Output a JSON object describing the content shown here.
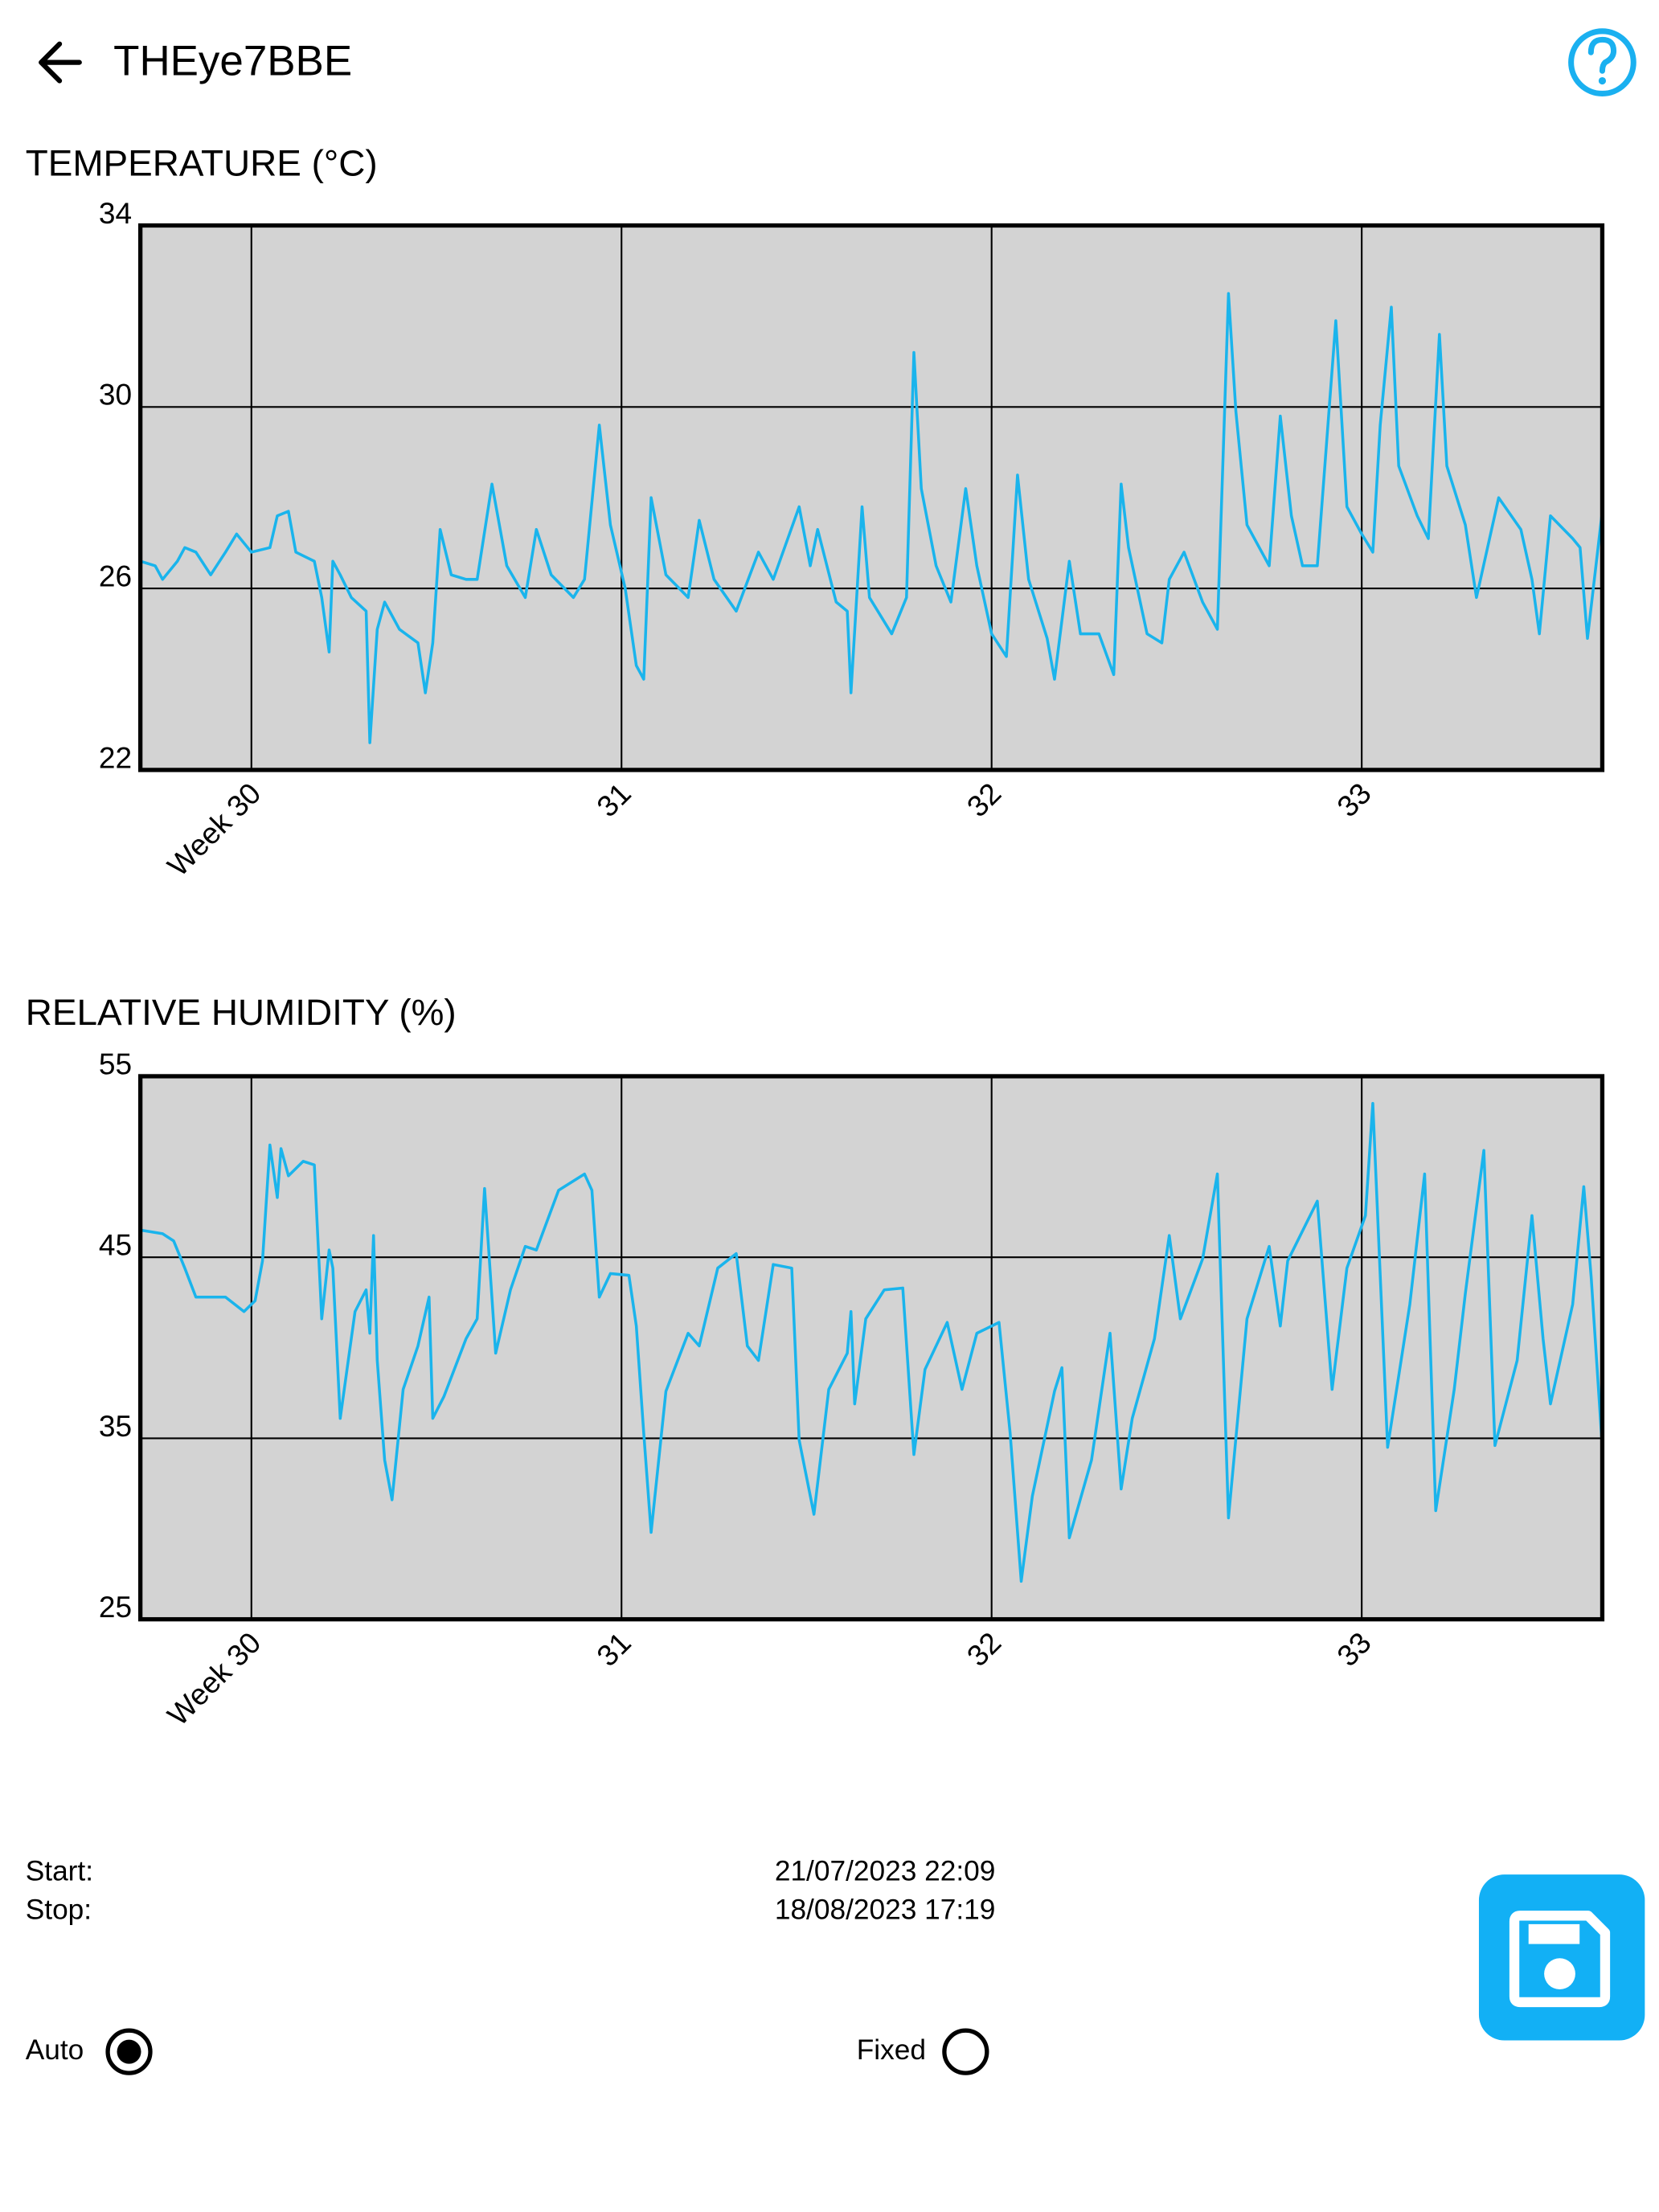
{
  "header": {
    "title": "THEye7BBE"
  },
  "chart_data": [
    {
      "type": "line",
      "title": "TEMPERATURE (°C)",
      "color": "#1ab4ec",
      "grid": true,
      "xlim": [
        29.7,
        33.65
      ],
      "xticks": [
        {
          "value": 30,
          "label": "Week 30"
        },
        31,
        32,
        33
      ],
      "ylim": [
        22,
        34
      ],
      "yticks": [
        22,
        26,
        30,
        34
      ],
      "x": [
        29.7,
        29.74,
        29.76,
        29.8,
        29.82,
        29.85,
        29.89,
        29.93,
        29.96,
        30.0,
        30.05,
        30.07,
        30.1,
        30.12,
        30.17,
        30.19,
        30.21,
        30.22,
        30.24,
        30.27,
        30.31,
        30.32,
        30.34,
        30.36,
        30.4,
        30.45,
        30.47,
        30.49,
        30.51,
        30.54,
        30.58,
        30.61,
        30.65,
        30.69,
        30.74,
        30.77,
        30.81,
        30.87,
        30.9,
        30.94,
        30.97,
        31.01,
        31.04,
        31.06,
        31.08,
        31.12,
        31.18,
        31.21,
        31.25,
        31.31,
        31.37,
        31.41,
        31.48,
        31.51,
        31.53,
        31.58,
        31.61,
        31.62,
        31.65,
        31.67,
        31.73,
        31.77,
        31.79,
        31.81,
        31.85,
        31.89,
        31.93,
        31.96,
        32.0,
        32.04,
        32.07,
        32.1,
        32.15,
        32.17,
        32.21,
        32.24,
        32.29,
        32.33,
        32.35,
        32.37,
        32.42,
        32.46,
        32.48,
        32.52,
        32.57,
        32.61,
        32.64,
        32.66,
        32.69,
        32.75,
        32.78,
        32.81,
        32.84,
        32.88,
        32.93,
        32.96,
        33.0,
        33.03,
        33.05,
        33.08,
        33.1,
        33.15,
        33.18,
        33.21,
        33.23,
        33.28,
        33.31,
        33.34,
        33.37,
        33.43,
        33.46,
        33.48,
        33.51,
        33.57,
        33.59,
        33.61,
        33.65
      ],
      "values": [
        26.6,
        26.5,
        26.2,
        26.6,
        26.9,
        26.8,
        26.3,
        26.8,
        27.2,
        26.8,
        26.9,
        27.6,
        27.7,
        26.8,
        26.6,
        25.8,
        24.6,
        26.6,
        26.3,
        25.8,
        25.5,
        22.6,
        25.1,
        25.7,
        25.1,
        24.8,
        23.7,
        24.8,
        27.3,
        26.3,
        26.2,
        26.2,
        28.3,
        26.5,
        25.8,
        27.3,
        26.3,
        25.8,
        26.2,
        29.6,
        27.4,
        26.0,
        24.3,
        24.0,
        28.0,
        26.3,
        25.8,
        27.5,
        26.2,
        25.5,
        26.8,
        26.2,
        27.8,
        26.5,
        27.3,
        25.7,
        25.5,
        23.7,
        27.8,
        25.8,
        25.0,
        25.8,
        31.2,
        28.2,
        26.5,
        25.7,
        28.2,
        26.5,
        25.0,
        24.5,
        28.5,
        26.2,
        24.9,
        24.0,
        26.6,
        25.0,
        25.0,
        24.1,
        28.3,
        26.9,
        25.0,
        24.8,
        26.2,
        26.8,
        25.7,
        25.1,
        32.5,
        29.9,
        27.4,
        26.5,
        29.8,
        27.6,
        26.5,
        26.5,
        31.9,
        27.8,
        27.2,
        26.8,
        29.6,
        32.2,
        28.7,
        27.6,
        27.1,
        31.6,
        28.7,
        27.4,
        25.8,
        26.9,
        28.0,
        27.3,
        26.2,
        25.0,
        27.6,
        27.1,
        26.9,
        24.9,
        27.7
      ]
    },
    {
      "type": "line",
      "title": "RELATIVE HUMIDITY (%)",
      "color": "#1ab4ec",
      "grid": true,
      "xlim": [
        29.7,
        33.65
      ],
      "xticks": [
        {
          "value": 30,
          "label": "Week 30"
        },
        31,
        32,
        33
      ],
      "ylim": [
        25,
        55
      ],
      "yticks": [
        25,
        35,
        45,
        55
      ],
      "x": [
        29.7,
        29.76,
        29.79,
        29.82,
        29.85,
        29.93,
        29.98,
        30.01,
        30.03,
        30.05,
        30.07,
        30.08,
        30.1,
        30.14,
        30.17,
        30.19,
        30.21,
        30.22,
        30.24,
        30.28,
        30.31,
        30.32,
        30.33,
        30.34,
        30.36,
        30.38,
        30.41,
        30.45,
        30.48,
        30.49,
        30.52,
        30.58,
        30.61,
        30.63,
        30.66,
        30.7,
        30.74,
        30.77,
        30.83,
        30.9,
        30.92,
        30.94,
        30.97,
        31.02,
        31.04,
        31.06,
        31.08,
        31.12,
        31.18,
        31.21,
        31.26,
        31.31,
        31.34,
        31.37,
        31.41,
        31.46,
        31.48,
        31.52,
        31.56,
        31.61,
        31.62,
        31.63,
        31.66,
        31.71,
        31.76,
        31.79,
        31.82,
        31.88,
        31.92,
        31.96,
        32.02,
        32.05,
        32.08,
        32.11,
        32.17,
        32.19,
        32.21,
        32.27,
        32.32,
        32.35,
        32.38,
        32.44,
        32.48,
        32.51,
        32.57,
        32.61,
        32.64,
        32.69,
        32.75,
        32.78,
        32.8,
        32.88,
        32.92,
        32.96,
        33.01,
        33.03,
        33.07,
        33.13,
        33.17,
        33.2,
        33.25,
        33.28,
        33.33,
        33.36,
        33.42,
        33.46,
        33.49,
        33.51,
        33.57,
        33.6,
        33.62,
        33.65
      ],
      "values": [
        46.5,
        46.3,
        45.9,
        44.4,
        42.8,
        42.8,
        42.0,
        42.6,
        44.8,
        51.2,
        48.3,
        51.0,
        49.5,
        50.3,
        50.1,
        41.6,
        45.4,
        44.4,
        36.1,
        42.0,
        43.2,
        40.8,
        46.2,
        39.3,
        33.8,
        31.6,
        37.7,
        40.1,
        42.8,
        36.1,
        37.3,
        40.5,
        41.6,
        48.8,
        39.7,
        43.2,
        45.6,
        45.4,
        48.7,
        49.6,
        48.7,
        42.8,
        44.1,
        44.0,
        41.2,
        35.3,
        29.8,
        37.6,
        40.8,
        40.1,
        44.4,
        45.2,
        40.1,
        39.3,
        44.6,
        44.4,
        34.9,
        30.8,
        37.7,
        39.7,
        42.0,
        36.9,
        41.6,
        43.2,
        43.3,
        34.1,
        38.8,
        41.4,
        37.7,
        40.8,
        41.4,
        35.3,
        27.1,
        31.8,
        37.6,
        38.9,
        29.5,
        33.8,
        40.8,
        32.2,
        36.1,
        40.5,
        46.2,
        41.6,
        44.9,
        49.6,
        30.6,
        41.6,
        45.6,
        41.2,
        44.8,
        48.1,
        37.7,
        44.4,
        47.3,
        53.5,
        34.5,
        42.4,
        49.6,
        31.0,
        37.7,
        43.0,
        50.9,
        34.6,
        39.3,
        47.3,
        40.5,
        36.9,
        42.4,
        48.9,
        43.9,
        34.5
      ]
    }
  ],
  "info": {
    "start_label": "Start:",
    "start": "21/07/2023 22:09",
    "stop_label": "Stop:",
    "stop": "18/08/2023 17:19"
  },
  "controls": {
    "auto": "Auto",
    "fixed": "Fixed"
  }
}
